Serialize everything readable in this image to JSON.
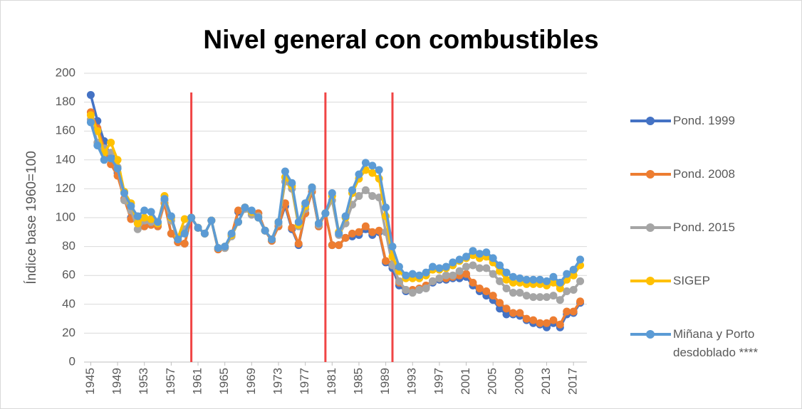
{
  "chart_data": {
    "type": "line",
    "title": "Nivel general con combustibles",
    "y_label": "Índice base 1960=100",
    "x": [
      1945,
      1946,
      1947,
      1948,
      1949,
      1950,
      1951,
      1952,
      1953,
      1954,
      1955,
      1956,
      1957,
      1958,
      1959,
      1960,
      1961,
      1962,
      1963,
      1964,
      1965,
      1966,
      1967,
      1968,
      1969,
      1970,
      1971,
      1972,
      1973,
      1974,
      1975,
      1976,
      1977,
      1978,
      1979,
      1980,
      1981,
      1982,
      1983,
      1984,
      1985,
      1986,
      1987,
      1988,
      1989,
      1990,
      1991,
      1992,
      1993,
      1994,
      1995,
      1996,
      1997,
      1998,
      1999,
      2000,
      2001,
      2002,
      2003,
      2004,
      2005,
      2006,
      2007,
      2008,
      2009,
      2010,
      2011,
      2012,
      2013,
      2014,
      2015,
      2016,
      2017,
      2018
    ],
    "xlim": [
      1944,
      2019
    ],
    "xticks": [
      1945,
      1949,
      1953,
      1957,
      1961,
      1965,
      1969,
      1973,
      1977,
      1981,
      1985,
      1989,
      1993,
      1997,
      2001,
      2005,
      2009,
      2013,
      2017
    ],
    "ylim": [
      0,
      200
    ],
    "yticks": [
      0,
      20,
      40,
      60,
      80,
      100,
      120,
      140,
      160,
      180,
      200
    ],
    "grid": true,
    "legend": "right",
    "vlines": [
      1960,
      1980,
      1990
    ],
    "vline_color": "#f04545",
    "series": [
      {
        "name": "Pond. 1999",
        "color": "#4472c4",
        "values": [
          185,
          167,
          153,
          142,
          131,
          113,
          100,
          97,
          94,
          95,
          94,
          110,
          89,
          83,
          82,
          100,
          93,
          89,
          98,
          78,
          79,
          88,
          104,
          107,
          104,
          103,
          91,
          84,
          94,
          108,
          92,
          81,
          103,
          118,
          94,
          103,
          81,
          81,
          86,
          87,
          88,
          92,
          88,
          90,
          69,
          65,
          53,
          49,
          49,
          50,
          52,
          55,
          57,
          57,
          58,
          58,
          59,
          53,
          49,
          46,
          43,
          37,
          33,
          33,
          32,
          29,
          27,
          26,
          24,
          27,
          24,
          33,
          34,
          41
        ]
      },
      {
        "name": "Pond. 2008",
        "color": "#ed7d31",
        "values": [
          173,
          162,
          148,
          137,
          129,
          113,
          99,
          97,
          94,
          95,
          94,
          110,
          89,
          83,
          82,
          100,
          93,
          89,
          98,
          78,
          79,
          88,
          105,
          107,
          104,
          103,
          91,
          84,
          94,
          110,
          93,
          82,
          103,
          118,
          94,
          103,
          81,
          81,
          86,
          89,
          90,
          94,
          90,
          91,
          70,
          68,
          55,
          50,
          50,
          51,
          53,
          56,
          58,
          58,
          59,
          60,
          61,
          55,
          51,
          49,
          46,
          41,
          37,
          34,
          34,
          30,
          29,
          27,
          27,
          29,
          26,
          35,
          35,
          42
        ]
      },
      {
        "name": "Pond. 2015",
        "color": "#a5a5a5",
        "values": [
          168,
          152,
          148,
          145,
          135,
          112,
          105,
          92,
          98,
          97,
          96,
          112,
          98,
          85,
          92,
          100,
          93,
          89,
          98,
          79,
          79,
          87,
          97,
          106,
          102,
          101,
          91,
          85,
          96,
          125,
          120,
          94,
          106,
          120,
          95,
          103,
          112,
          88,
          96,
          109,
          115,
          119,
          115,
          114,
          90,
          67,
          56,
          50,
          48,
          50,
          51,
          56,
          58,
          60,
          60,
          63,
          66,
          67,
          65,
          65,
          61,
          56,
          51,
          48,
          48,
          46,
          45,
          45,
          45,
          46,
          43,
          49,
          50,
          56
        ]
      },
      {
        "name": "SIGEP",
        "color": "#ffc000",
        "values": [
          171,
          160,
          145,
          152,
          140,
          118,
          110,
          96,
          100,
          99,
          96,
          115,
          100,
          86,
          99,
          100,
          93,
          89,
          98,
          79,
          80,
          88,
          97,
          107,
          104,
          100,
          91,
          85,
          97,
          128,
          122,
          95,
          108,
          121,
          96,
          103,
          115,
          90,
          100,
          117,
          127,
          133,
          131,
          127,
          101,
          73,
          63,
          58,
          58,
          58,
          60,
          64,
          64,
          65,
          67,
          70,
          72,
          74,
          72,
          73,
          69,
          63,
          57,
          55,
          55,
          54,
          54,
          54,
          53,
          55,
          51,
          57,
          60,
          67
        ]
      },
      {
        "name": "Miñana y Porto desdoblado ****",
        "color": "#5b9bd5",
        "values": [
          166,
          150,
          140,
          141,
          134,
          117,
          108,
          101,
          105,
          104,
          97,
          113,
          101,
          85,
          89,
          100,
          93,
          89,
          98,
          79,
          80,
          89,
          97,
          107,
          105,
          100,
          91,
          85,
          97,
          132,
          124,
          97,
          110,
          121,
          96,
          103,
          117,
          89,
          101,
          119,
          130,
          138,
          136,
          133,
          107,
          80,
          66,
          60,
          61,
          60,
          62,
          66,
          65,
          66,
          69,
          71,
          73,
          77,
          75,
          76,
          72,
          67,
          62,
          59,
          58,
          57,
          57,
          57,
          56,
          59,
          55,
          61,
          64,
          71
        ]
      }
    ]
  }
}
